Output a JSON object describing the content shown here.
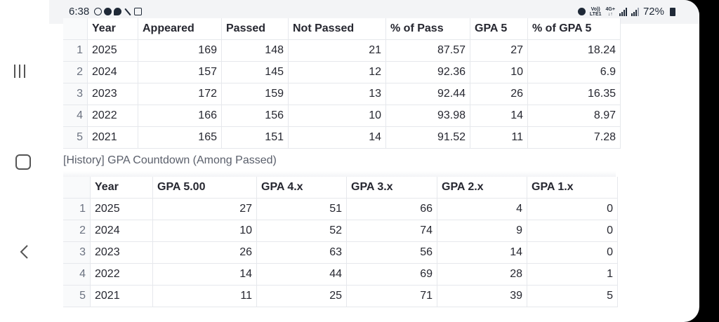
{
  "status_bar": {
    "time": "6:38",
    "left_icons": [
      "whatsapp-icon",
      "facebook-icon",
      "messenger-icon",
      "magic-wand-icon",
      "gallery-icon"
    ],
    "network_label_top": "Vo))",
    "network_label_bottom": "LTE1",
    "network_type_top": "4G+",
    "network_type_bottom": "↓↑",
    "battery": "72%"
  },
  "table_top": {
    "columns": [
      "Year",
      "Appeared",
      "Passed",
      "Not Passed",
      "% of Pass",
      "GPA 5",
      "% of GPA 5"
    ],
    "rows": [
      {
        "idx": "1",
        "cells": [
          "2025",
          "169",
          "148",
          "21",
          "87.57",
          "27",
          "18.24"
        ]
      },
      {
        "idx": "2",
        "cells": [
          "2024",
          "157",
          "145",
          "12",
          "92.36",
          "10",
          "6.9"
        ]
      },
      {
        "idx": "3",
        "cells": [
          "2023",
          "172",
          "159",
          "13",
          "92.44",
          "26",
          "16.35"
        ]
      },
      {
        "idx": "4",
        "cells": [
          "2022",
          "166",
          "156",
          "10",
          "93.98",
          "14",
          "8.97"
        ]
      },
      {
        "idx": "5",
        "cells": [
          "2021",
          "165",
          "151",
          "14",
          "91.52",
          "11",
          "7.28"
        ]
      }
    ]
  },
  "caption": "[History] GPA Countdown (Among Passed)",
  "table_bottom": {
    "columns": [
      "Year",
      "GPA 5.00",
      "GPA 4.x",
      "GPA 3.x",
      "GPA 2.x",
      "GPA 1.x"
    ],
    "rows": [
      {
        "idx": "1",
        "cells": [
          "2025",
          "27",
          "51",
          "66",
          "4",
          "0"
        ]
      },
      {
        "idx": "2",
        "cells": [
          "2024",
          "10",
          "52",
          "74",
          "9",
          "0"
        ]
      },
      {
        "idx": "3",
        "cells": [
          "2023",
          "26",
          "63",
          "56",
          "14",
          "0"
        ]
      },
      {
        "idx": "4",
        "cells": [
          "2022",
          "14",
          "44",
          "69",
          "28",
          "1"
        ]
      },
      {
        "idx": "5",
        "cells": [
          "2021",
          "11",
          "25",
          "71",
          "39",
          "5"
        ]
      }
    ]
  }
}
